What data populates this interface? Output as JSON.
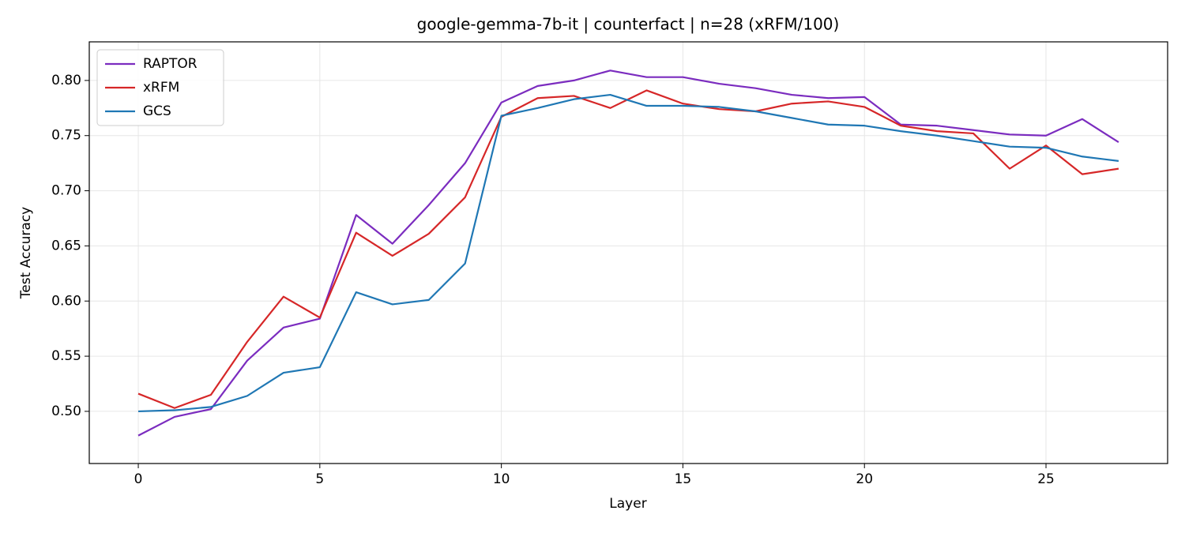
{
  "chart_data": {
    "type": "line",
    "title": "google-gemma-7b-it | counterfact | n=28 (xRFM/100)",
    "xlabel": "Layer",
    "ylabel": "Test Accuracy",
    "x": [
      0,
      1,
      2,
      3,
      4,
      5,
      6,
      7,
      8,
      9,
      10,
      11,
      12,
      13,
      14,
      15,
      16,
      17,
      18,
      19,
      20,
      21,
      22,
      23,
      24,
      25,
      26,
      27
    ],
    "series": [
      {
        "name": "RAPTOR",
        "color": "#7b2cbf",
        "values": [
          0.478,
          0.495,
          0.502,
          0.546,
          0.576,
          0.584,
          0.678,
          0.652,
          0.687,
          0.725,
          0.78,
          0.795,
          0.8,
          0.809,
          0.803,
          0.803,
          0.797,
          0.793,
          0.787,
          0.784,
          0.785,
          0.76,
          0.759,
          0.755,
          0.751,
          0.75,
          0.765,
          0.744
        ]
      },
      {
        "name": "xRFM",
        "color": "#d62728",
        "values": [
          0.516,
          0.503,
          0.515,
          0.563,
          0.604,
          0.585,
          0.662,
          0.641,
          0.661,
          0.694,
          0.767,
          0.784,
          0.786,
          0.775,
          0.791,
          0.779,
          0.774,
          0.772,
          0.779,
          0.781,
          0.776,
          0.759,
          0.754,
          0.752,
          0.72,
          0.741,
          0.715,
          0.72
        ]
      },
      {
        "name": "GCS",
        "color": "#1f77b4",
        "values": [
          0.5,
          0.501,
          0.504,
          0.514,
          0.535,
          0.54,
          0.608,
          0.597,
          0.601,
          0.634,
          0.768,
          0.775,
          0.783,
          0.787,
          0.777,
          0.777,
          0.776,
          0.772,
          0.766,
          0.76,
          0.759,
          0.754,
          0.75,
          0.745,
          0.74,
          0.739,
          0.731,
          0.727
        ]
      }
    ],
    "xlim": [
      -1.35,
      28.35
    ],
    "xticks": [
      0,
      5,
      10,
      15,
      20,
      25
    ],
    "ylim": [
      0.4527,
      0.835
    ],
    "yticks": [
      {
        "value": 0.5,
        "label": "0.50"
      },
      {
        "value": 0.55,
        "label": "0.55"
      },
      {
        "value": 0.6,
        "label": "0.60"
      },
      {
        "value": 0.65,
        "label": "0.65"
      },
      {
        "value": 0.7,
        "label": "0.70"
      },
      {
        "value": 0.75,
        "label": "0.75"
      },
      {
        "value": 0.8,
        "label": "0.80"
      }
    ],
    "grid": true,
    "legend": "upper-left"
  }
}
